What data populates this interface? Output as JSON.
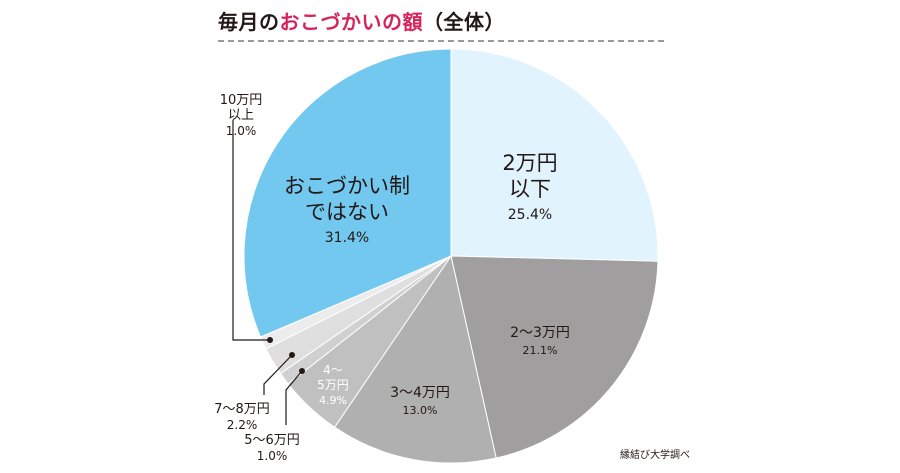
{
  "title": {
    "prefix": "毎月の",
    "accent": "おこづかいの額",
    "suffix": "（全体）"
  },
  "source": "縁結び大学調べ",
  "colors": {
    "accent": "#d6245a",
    "none": "#72c8ee",
    "under2": "#e1f3fd",
    "2to3": "#a09e9f",
    "3to4": "#b1b0b1",
    "4to5": "#c1c0c1",
    "5to6": "#d1d0d1",
    "7to8": "#dfdfdf",
    "10plus": "#ececec"
  },
  "chart_data": {
    "type": "pie",
    "title": "毎月のおこづかいの額（全体）",
    "start": "12 o'clock, clockwise",
    "slices": [
      {
        "key": "under2",
        "label_lines": [
          "2万円",
          "以下"
        ],
        "pct_label": "25.4%",
        "value": 25.4
      },
      {
        "key": "2to3",
        "label_lines": [
          "2〜3万円"
        ],
        "pct_label": "21.1%",
        "value": 21.1
      },
      {
        "key": "3to4",
        "label_lines": [
          "3〜4万円"
        ],
        "pct_label": "13.0%",
        "value": 13.0
      },
      {
        "key": "4to5",
        "label_lines": [
          "4〜",
          "5万円"
        ],
        "pct_label": "4.9%",
        "value": 4.9
      },
      {
        "key": "5to6",
        "label_lines": [
          "5〜6万円"
        ],
        "pct_label": "1.0%",
        "value": 1.0
      },
      {
        "key": "7to8",
        "label_lines": [
          "7〜8万円"
        ],
        "pct_label": "2.2%",
        "value": 2.2
      },
      {
        "key": "10plus",
        "label_lines": [
          "10万円",
          "以上"
        ],
        "pct_label": "1.0%",
        "value": 1.0
      },
      {
        "key": "none",
        "label_lines": [
          "おこづかい制",
          "ではない"
        ],
        "pct_label": "31.4%",
        "value": 31.4
      }
    ]
  }
}
